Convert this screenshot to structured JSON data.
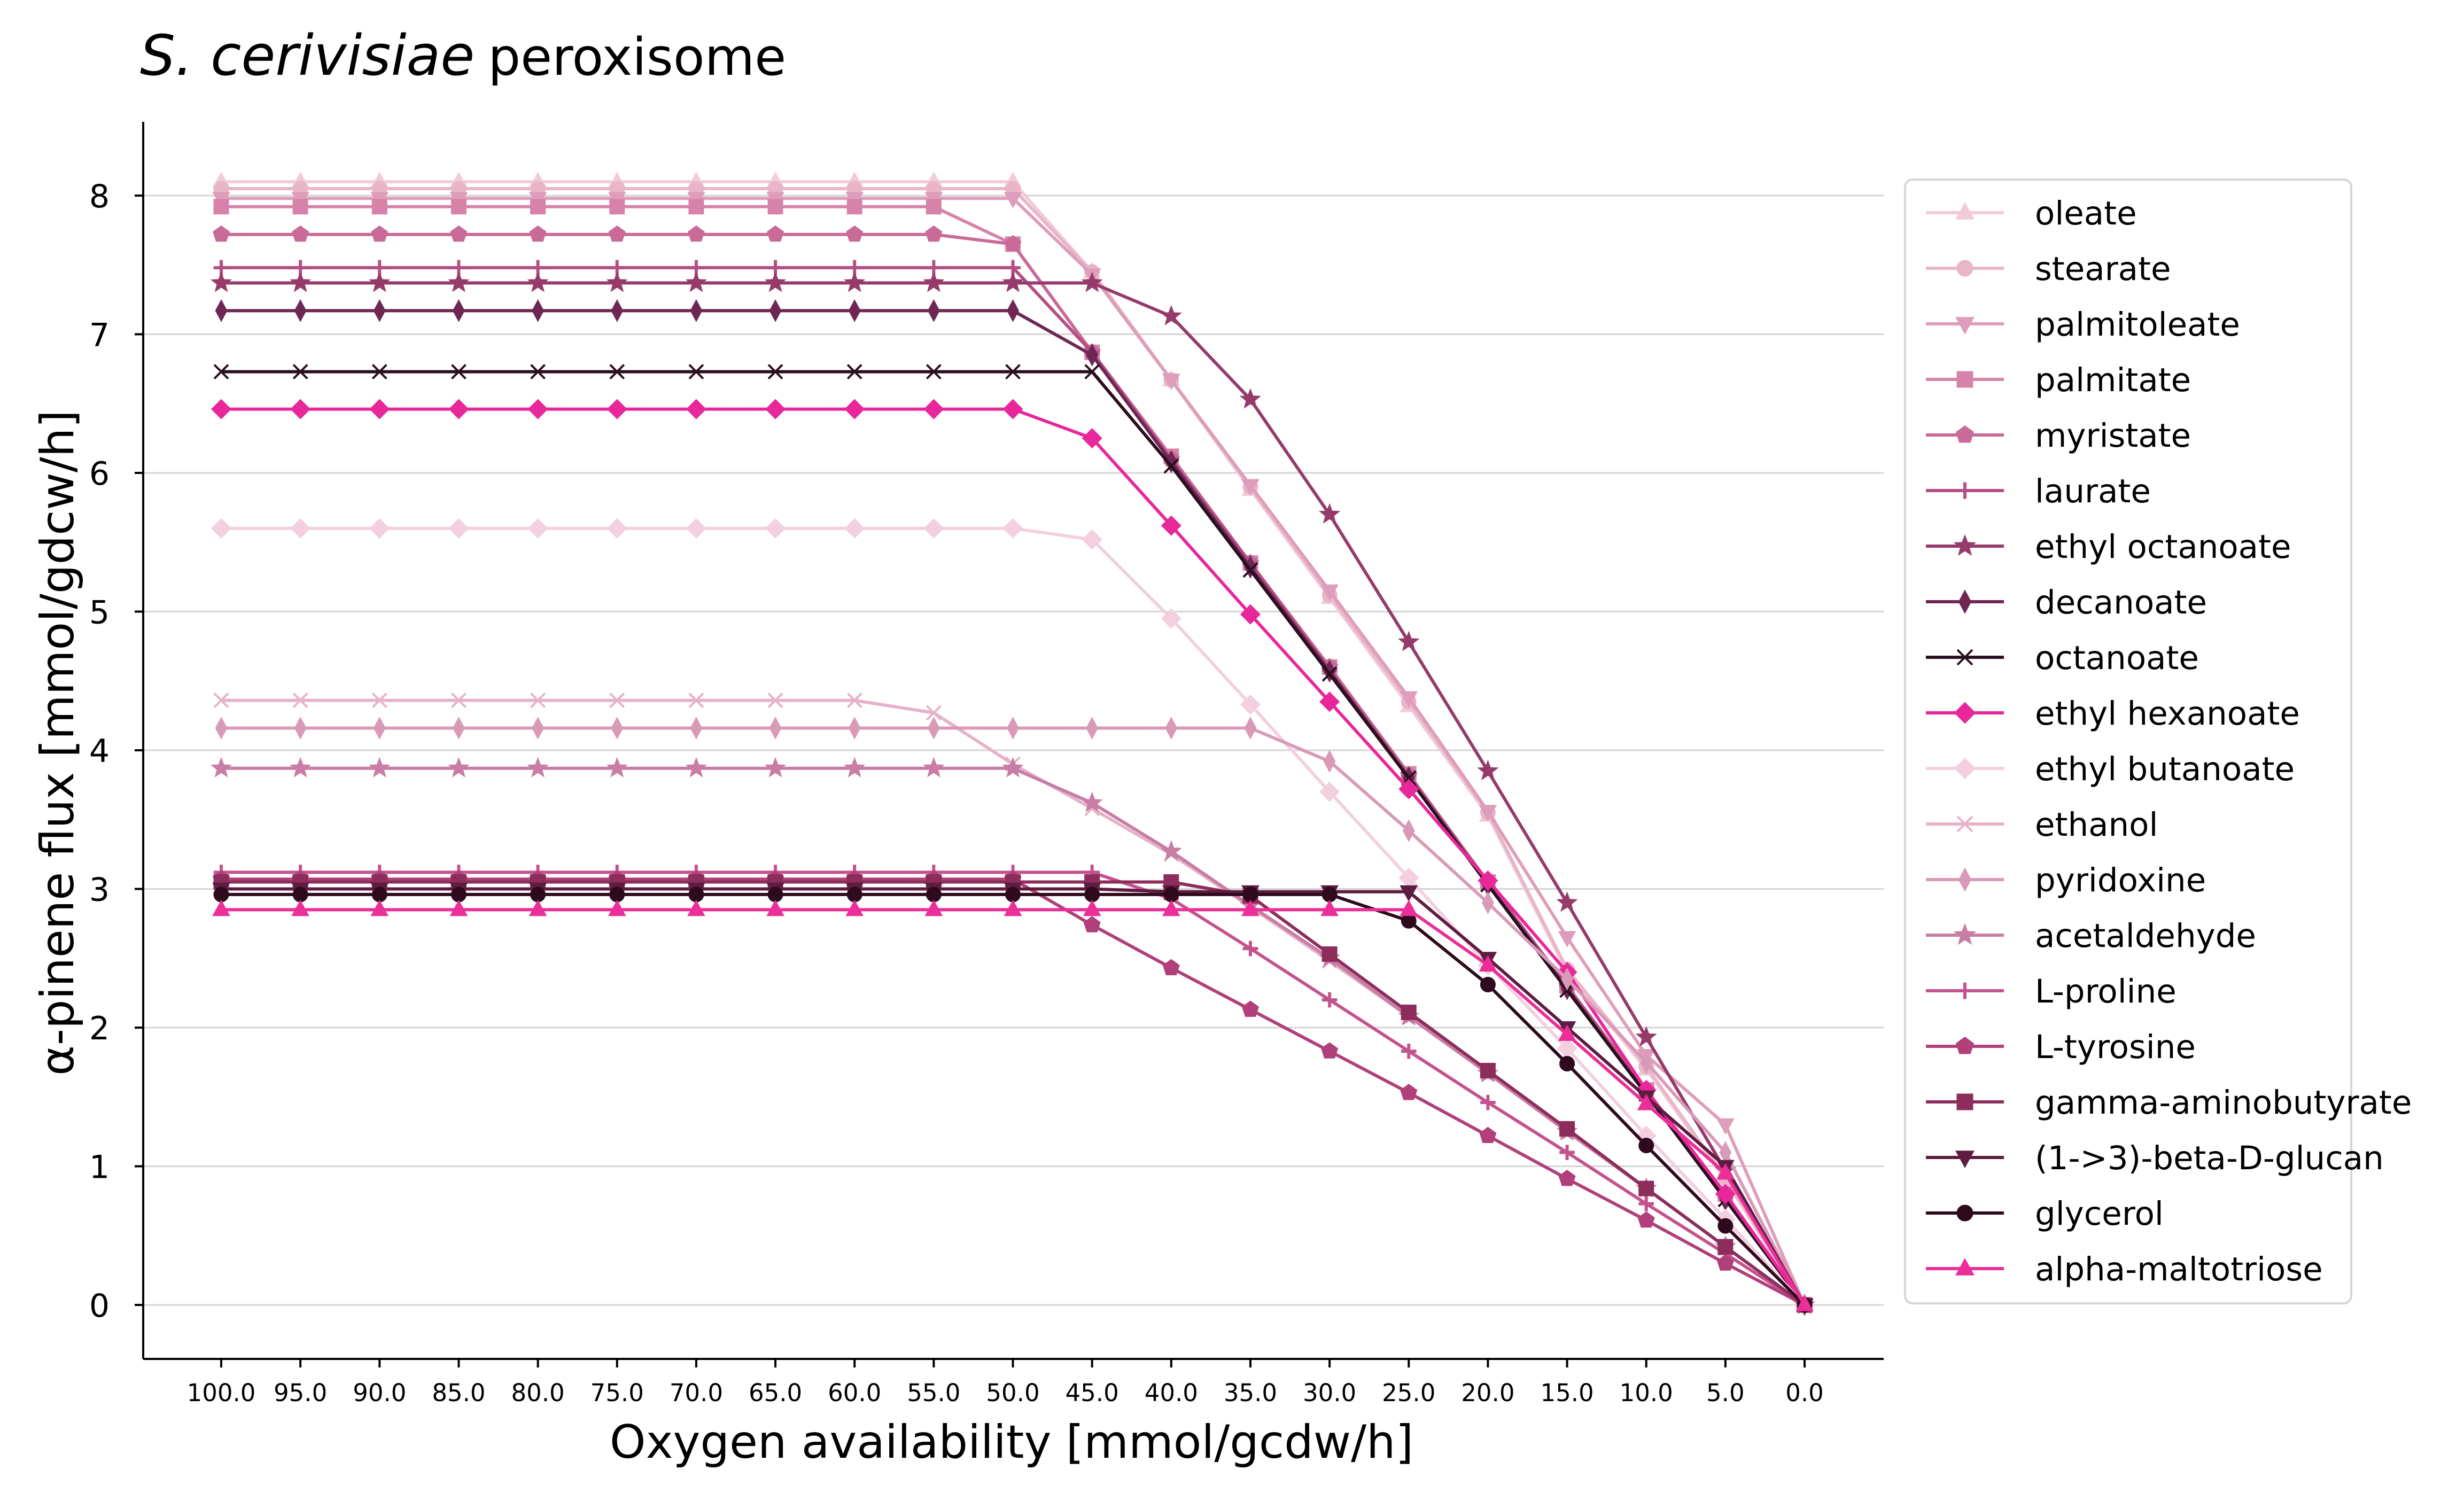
{
  "chart_data": {
    "type": "line",
    "title": "S. cerivisiae",
    "title_suffix": "peroxisome",
    "xlabel": "Oxygen availability [mmol/gcdw/h]",
    "ylabel": "α-pinene flux [mmol/gdcw/h]",
    "x": [
      100.0,
      95.0,
      90.0,
      85.0,
      80.0,
      75.0,
      70.0,
      65.0,
      60.0,
      55.0,
      50.0,
      45.0,
      40.0,
      35.0,
      30.0,
      25.0,
      20.0,
      15.0,
      10.0,
      5.0,
      0.0
    ],
    "x_tick_labels": [
      "100.0",
      "95.0",
      "90.0",
      "85.0",
      "80.0",
      "75.0",
      "70.0",
      "65.0",
      "60.0",
      "55.0",
      "50.0",
      "45.0",
      "40.0",
      "35.0",
      "30.0",
      "25.0",
      "20.0",
      "15.0",
      "10.0",
      "5.0",
      "0.0"
    ],
    "x_reversed": true,
    "ylim": [
      -0.4,
      8.5
    ],
    "y_ticks": [
      0,
      1,
      2,
      3,
      4,
      5,
      6,
      7,
      8
    ],
    "grid": "horizontal",
    "legend_position": "right",
    "series": [
      {
        "name": "oleate",
        "color": "#f2cbd9",
        "marker": "triangle-up",
        "values": [
          8.1,
          8.1,
          8.1,
          8.1,
          8.1,
          8.1,
          8.1,
          8.1,
          8.1,
          8.1,
          8.1,
          7.45,
          6.67,
          5.88,
          5.1,
          4.32,
          3.53,
          2.4,
          1.7,
          0.9,
          0
        ]
      },
      {
        "name": "stearate",
        "color": "#e9b5c8",
        "marker": "circle",
        "values": [
          8.05,
          8.05,
          8.05,
          8.05,
          8.05,
          8.05,
          8.05,
          8.05,
          8.05,
          8.05,
          8.05,
          7.45,
          6.67,
          5.9,
          5.12,
          4.35,
          3.55,
          2.42,
          1.72,
          0.92,
          0
        ]
      },
      {
        "name": "palmitoleate",
        "color": "#de9dba",
        "marker": "triangle-down",
        "values": [
          7.98,
          7.98,
          7.98,
          7.98,
          7.98,
          7.98,
          7.98,
          7.98,
          7.98,
          7.98,
          7.98,
          7.43,
          6.67,
          5.91,
          5.15,
          4.38,
          3.56,
          2.65,
          1.8,
          1.3,
          0
        ]
      },
      {
        "name": "palmitate",
        "color": "#d783a9",
        "marker": "square",
        "values": [
          7.92,
          7.92,
          7.92,
          7.92,
          7.92,
          7.92,
          7.92,
          7.92,
          7.92,
          7.92,
          7.65,
          6.87,
          6.12,
          5.35,
          4.6,
          3.83,
          3.05,
          2.3,
          1.55,
          0.8,
          0
        ]
      },
      {
        "name": "myristate",
        "color": "#c96a98",
        "marker": "pentagon",
        "values": [
          7.72,
          7.72,
          7.72,
          7.72,
          7.72,
          7.72,
          7.72,
          7.72,
          7.72,
          7.72,
          7.65,
          6.87,
          6.1,
          5.35,
          4.6,
          3.82,
          3.05,
          2.3,
          1.55,
          0.8,
          0
        ]
      },
      {
        "name": "laurate",
        "color": "#b54e83",
        "marker": "plus",
        "values": [
          7.48,
          7.48,
          7.48,
          7.48,
          7.48,
          7.48,
          7.48,
          7.48,
          7.48,
          7.48,
          7.48,
          6.87,
          6.1,
          5.35,
          4.58,
          3.82,
          3.05,
          2.3,
          1.53,
          0.78,
          0
        ]
      },
      {
        "name": "ethyl octanoate",
        "color": "#963a6a",
        "marker": "star",
        "values": [
          7.37,
          7.37,
          7.37,
          7.37,
          7.37,
          7.37,
          7.37,
          7.37,
          7.37,
          7.37,
          7.37,
          7.37,
          7.13,
          6.53,
          5.7,
          4.78,
          3.85,
          2.9,
          1.93,
          0.97,
          0
        ]
      },
      {
        "name": "decanoate",
        "color": "#6e2654",
        "marker": "thin-diamond",
        "values": [
          7.17,
          7.17,
          7.17,
          7.17,
          7.17,
          7.17,
          7.17,
          7.17,
          7.17,
          7.17,
          7.17,
          6.85,
          6.08,
          5.32,
          4.57,
          3.8,
          3.03,
          2.28,
          1.52,
          0.76,
          0
        ]
      },
      {
        "name": "octanoate",
        "color": "#2a0f1f",
        "marker": "x",
        "values": [
          6.73,
          6.73,
          6.73,
          6.73,
          6.73,
          6.73,
          6.73,
          6.73,
          6.73,
          6.73,
          6.73,
          6.73,
          6.05,
          5.3,
          4.55,
          3.8,
          3.03,
          2.27,
          1.52,
          0.76,
          0
        ]
      },
      {
        "name": "ethyl hexanoate",
        "color": "#e8279a",
        "marker": "diamond",
        "values": [
          6.46,
          6.46,
          6.46,
          6.46,
          6.46,
          6.46,
          6.46,
          6.46,
          6.46,
          6.46,
          6.46,
          6.25,
          5.62,
          4.98,
          4.35,
          3.72,
          3.06,
          2.4,
          1.55,
          0.8,
          0
        ]
      },
      {
        "name": "ethyl butanoate",
        "color": "#f3cfe0",
        "marker": "diamond",
        "values": [
          5.6,
          5.6,
          5.6,
          5.6,
          5.6,
          5.6,
          5.6,
          5.6,
          5.6,
          5.6,
          5.6,
          5.52,
          4.95,
          4.33,
          3.7,
          3.08,
          2.45,
          1.85,
          1.22,
          0.62,
          0
        ]
      },
      {
        "name": "ethanol",
        "color": "#e5b2c9",
        "marker": "x",
        "values": [
          4.36,
          4.36,
          4.36,
          4.36,
          4.36,
          4.36,
          4.36,
          4.36,
          4.36,
          4.27,
          3.9,
          3.58,
          3.25,
          2.87,
          2.48,
          2.08,
          1.67,
          1.25,
          0.84,
          0.42,
          0
        ]
      },
      {
        "name": "pyridoxine",
        "color": "#d99ab8",
        "marker": "thin-diamond",
        "values": [
          4.16,
          4.16,
          4.16,
          4.16,
          4.16,
          4.16,
          4.16,
          4.16,
          4.16,
          4.16,
          4.16,
          4.16,
          4.16,
          4.16,
          3.92,
          3.42,
          2.9,
          2.35,
          1.75,
          1.1,
          0
        ]
      },
      {
        "name": "acetaldehyde",
        "color": "#c97da4",
        "marker": "star",
        "values": [
          3.87,
          3.87,
          3.87,
          3.87,
          3.87,
          3.87,
          3.87,
          3.87,
          3.87,
          3.87,
          3.87,
          3.62,
          3.27,
          2.88,
          2.5,
          2.08,
          1.67,
          1.25,
          0.84,
          0.42,
          0
        ]
      },
      {
        "name": "L-proline",
        "color": "#c4528d",
        "marker": "plus",
        "values": [
          3.12,
          3.12,
          3.12,
          3.12,
          3.12,
          3.12,
          3.12,
          3.12,
          3.12,
          3.12,
          3.12,
          3.12,
          2.93,
          2.57,
          2.2,
          1.83,
          1.46,
          1.1,
          0.73,
          0.37,
          0
        ]
      },
      {
        "name": "L-tyrosine",
        "color": "#b13f79",
        "marker": "pentagon",
        "values": [
          3.07,
          3.07,
          3.07,
          3.07,
          3.07,
          3.07,
          3.07,
          3.07,
          3.07,
          3.07,
          3.07,
          2.74,
          2.43,
          2.13,
          1.83,
          1.53,
          1.22,
          0.91,
          0.61,
          0.3,
          0
        ]
      },
      {
        "name": "gamma-aminobutyrate",
        "color": "#8c2d5c",
        "marker": "square",
        "values": [
          3.05,
          3.05,
          3.05,
          3.05,
          3.05,
          3.05,
          3.05,
          3.05,
          3.05,
          3.05,
          3.05,
          3.05,
          3.05,
          2.95,
          2.53,
          2.11,
          1.69,
          1.27,
          0.84,
          0.42,
          0
        ]
      },
      {
        "name": "(1->3)-beta-D-glucan",
        "color": "#5e1c40",
        "marker": "triangle-down",
        "values": [
          3.0,
          3.0,
          3.0,
          3.0,
          3.0,
          3.0,
          3.0,
          3.0,
          3.0,
          3.0,
          3.0,
          3.0,
          2.98,
          2.98,
          2.98,
          2.98,
          2.5,
          2.0,
          1.5,
          1.0,
          0
        ]
      },
      {
        "name": "glycerol",
        "color": "#2e0a1c",
        "marker": "circle",
        "values": [
          2.96,
          2.96,
          2.96,
          2.96,
          2.96,
          2.96,
          2.96,
          2.96,
          2.96,
          2.96,
          2.96,
          2.96,
          2.96,
          2.96,
          2.96,
          2.77,
          2.31,
          1.74,
          1.15,
          0.57,
          0
        ]
      },
      {
        "name": "alpha-maltotriose",
        "color": "#ec2e98",
        "marker": "triangle-up",
        "values": [
          2.85,
          2.85,
          2.85,
          2.85,
          2.85,
          2.85,
          2.85,
          2.85,
          2.85,
          2.85,
          2.85,
          2.85,
          2.85,
          2.85,
          2.85,
          2.85,
          2.45,
          1.95,
          1.45,
          0.95,
          0
        ]
      }
    ]
  }
}
